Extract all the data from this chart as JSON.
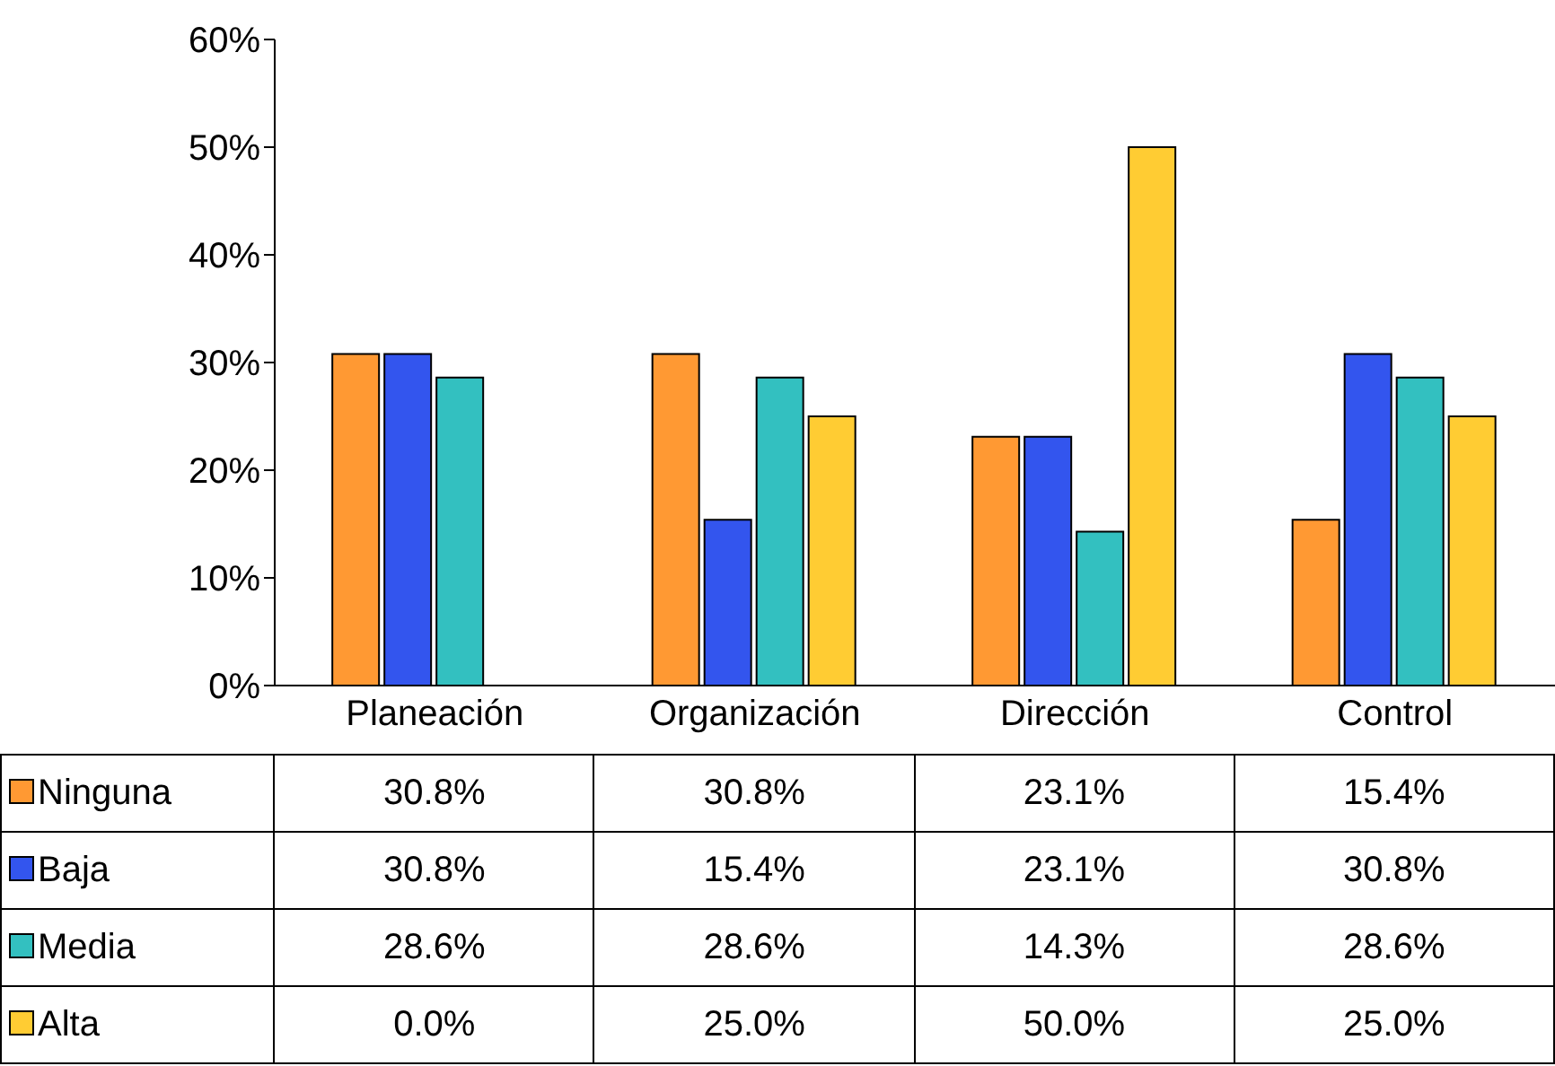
{
  "chart_data": {
    "type": "bar",
    "categories": [
      "Planeación",
      "Organización",
      "Dirección",
      "Control"
    ],
    "series": [
      {
        "name": "Ninguna",
        "color": "#ff9933",
        "values": [
          30.8,
          30.8,
          23.1,
          15.4
        ],
        "value_labels": [
          "30.8%",
          "30.8%",
          "23.1%",
          "15.4%"
        ]
      },
      {
        "name": "Baja",
        "color": "#3355ee",
        "values": [
          30.8,
          15.4,
          23.1,
          30.8
        ],
        "value_labels": [
          "30.8%",
          "15.4%",
          "23.1%",
          "30.8%"
        ]
      },
      {
        "name": "Media",
        "color": "#33c0c0",
        "values": [
          28.6,
          28.6,
          14.3,
          28.6
        ],
        "value_labels": [
          "28.6%",
          "28.6%",
          "14.3%",
          "28.6%"
        ]
      },
      {
        "name": "Alta",
        "color": "#ffcc33",
        "values": [
          0,
          25,
          50,
          25
        ],
        "value_labels": [
          "0.0%",
          "25.0%",
          "50.0%",
          "25.0%"
        ]
      }
    ],
    "ylim": [
      0,
      60
    ],
    "yticks": [
      {
        "value": 0,
        "label": "0%"
      },
      {
        "value": 10,
        "label": "10%"
      },
      {
        "value": 20,
        "label": "20%"
      },
      {
        "value": 30,
        "label": "30%"
      },
      {
        "value": 40,
        "label": "40%"
      },
      {
        "value": 50,
        "label": "50%"
      },
      {
        "value": 60,
        "label": "60%"
      }
    ],
    "grid": false,
    "legend": "bottom"
  }
}
